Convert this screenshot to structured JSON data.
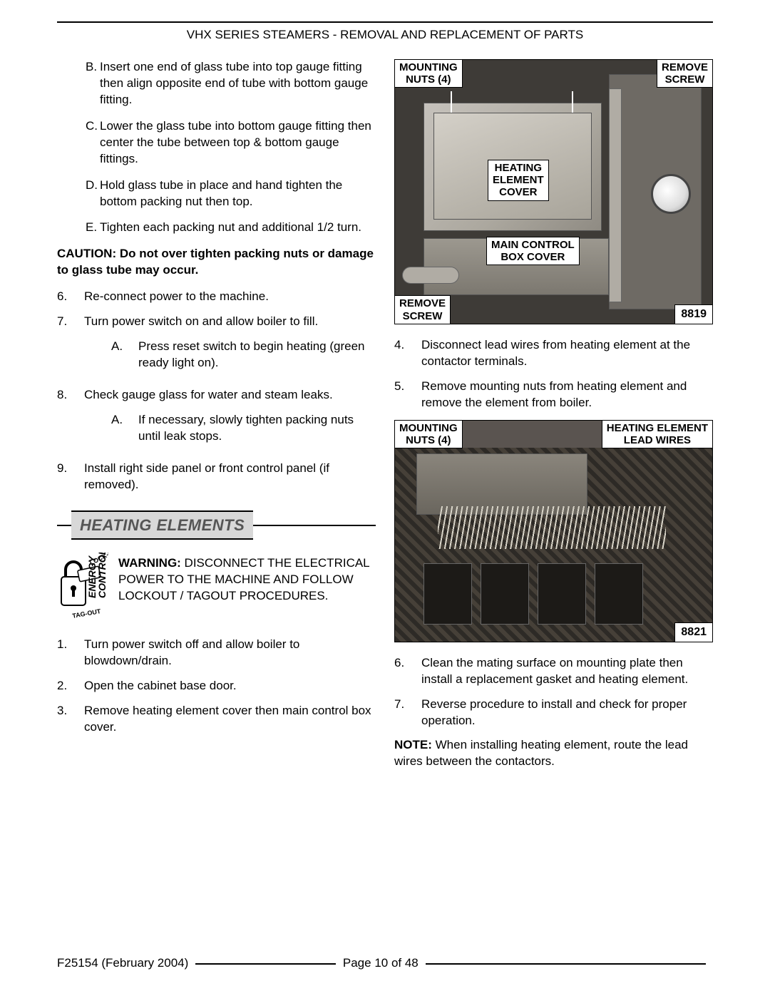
{
  "header": "VHX SERIES STEAMERS - REMOVAL AND REPLACEMENT OF PARTS",
  "left": {
    "letters": [
      {
        "m": "B.",
        "t": "Insert one end of glass tube into top gauge fitting then align opposite end of tube with bottom gauge fitting."
      },
      {
        "m": "C.",
        "t": "Lower the glass tube into bottom gauge fitting then center the tube between top & bottom gauge fittings."
      },
      {
        "m": "D.",
        "t": "Hold glass tube in place and hand tighten the bottom packing nut then top."
      },
      {
        "m": "E.",
        "t": "Tighten each packing nut and additional 1/2 turn."
      }
    ],
    "caution": "CAUTION: Do not over tighten packing nuts or damage to glass tube may occur.",
    "nums1": [
      {
        "m": "6.",
        "t": "Re-connect power to the machine.",
        "sub": []
      },
      {
        "m": "7.",
        "t": "Turn power switch on and allow boiler to fill.",
        "sub": [
          {
            "m": "A.",
            "t": "Press reset switch to begin heating (green ready light on)."
          }
        ]
      },
      {
        "m": "8.",
        "t": "Check gauge glass for water and steam leaks.",
        "sub": [
          {
            "m": "A.",
            "t": "If necessary, slowly tighten packing nuts until leak stops."
          }
        ]
      },
      {
        "m": "9.",
        "t": "Install right side panel or front control panel (if removed).",
        "sub": []
      }
    ],
    "section": "HEATING ELEMENTS",
    "warning_bold": "WARNING:",
    "warning": " DISCONNECT THE ELECTRICAL POWER TO THE MACHINE AND FOLLOW LOCKOUT / TAGOUT PROCEDURES.",
    "nums2": [
      {
        "m": "1.",
        "t": "Turn power switch off and allow boiler to blowdown/drain."
      },
      {
        "m": "2.",
        "t": "Open the cabinet base door."
      },
      {
        "m": "3.",
        "t": "Remove heating element cover then main control box cover."
      }
    ]
  },
  "right": {
    "fig1": {
      "labels": {
        "mount": "MOUNTING\nNUTS (4)",
        "removeTR": "REMOVE\nSCREW",
        "heating": "HEATING\nELEMENT\nCOVER",
        "mainbox": "MAIN CONTROL\nBOX COVER",
        "removeBL": "REMOVE\nSCREW"
      },
      "num": "8819"
    },
    "nums1": [
      {
        "m": "4.",
        "t": "Disconnect lead wires from heating element at the contactor terminals."
      },
      {
        "m": "5.",
        "t": "Remove mounting nuts from heating element and remove the element from boiler."
      }
    ],
    "fig2": {
      "labels": {
        "mount": "MOUNTING\nNUTS (4)",
        "lead": "HEATING ELEMENT\nLEAD WIRES"
      },
      "num": "8821"
    },
    "nums2": [
      {
        "m": "6.",
        "t": "Clean the mating surface on mounting plate then install a replacement gasket and heating element."
      },
      {
        "m": "7.",
        "t": "Reverse procedure to install and check for proper operation."
      }
    ],
    "note_bold": "NOTE:",
    "note": " When installing heating element, route the lead wires between the contactors."
  },
  "footer": {
    "doc": "F25154 (February 2004)",
    "page": "Page 10 of  48"
  }
}
